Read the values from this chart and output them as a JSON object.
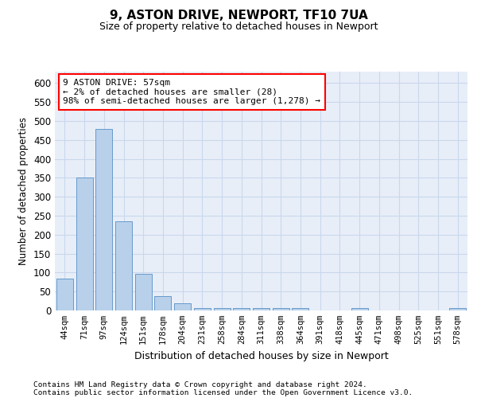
{
  "title1": "9, ASTON DRIVE, NEWPORT, TF10 7UA",
  "title2": "Size of property relative to detached houses in Newport",
  "xlabel": "Distribution of detached houses by size in Newport",
  "ylabel": "Number of detached properties",
  "categories": [
    "44sqm",
    "71sqm",
    "97sqm",
    "124sqm",
    "151sqm",
    "178sqm",
    "204sqm",
    "231sqm",
    "258sqm",
    "284sqm",
    "311sqm",
    "338sqm",
    "364sqm",
    "391sqm",
    "418sqm",
    "445sqm",
    "471sqm",
    "498sqm",
    "525sqm",
    "551sqm",
    "578sqm"
  ],
  "values": [
    83,
    350,
    478,
    235,
    97,
    38,
    18,
    7,
    7,
    7,
    7,
    7,
    7,
    0,
    0,
    7,
    0,
    0,
    0,
    0,
    7
  ],
  "bar_color": "#b8d0ea",
  "bar_edge_color": "#6699cc",
  "annotation_box_text": "9 ASTON DRIVE: 57sqm\n← 2% of detached houses are smaller (28)\n98% of semi-detached houses are larger (1,278) →",
  "ylim": [
    0,
    630
  ],
  "yticks": [
    0,
    50,
    100,
    150,
    200,
    250,
    300,
    350,
    400,
    450,
    500,
    550,
    600
  ],
  "grid_color": "#c8d8ec",
  "background_color": "#e8eef8",
  "footer_line1": "Contains HM Land Registry data © Crown copyright and database right 2024.",
  "footer_line2": "Contains public sector information licensed under the Open Government Licence v3.0."
}
